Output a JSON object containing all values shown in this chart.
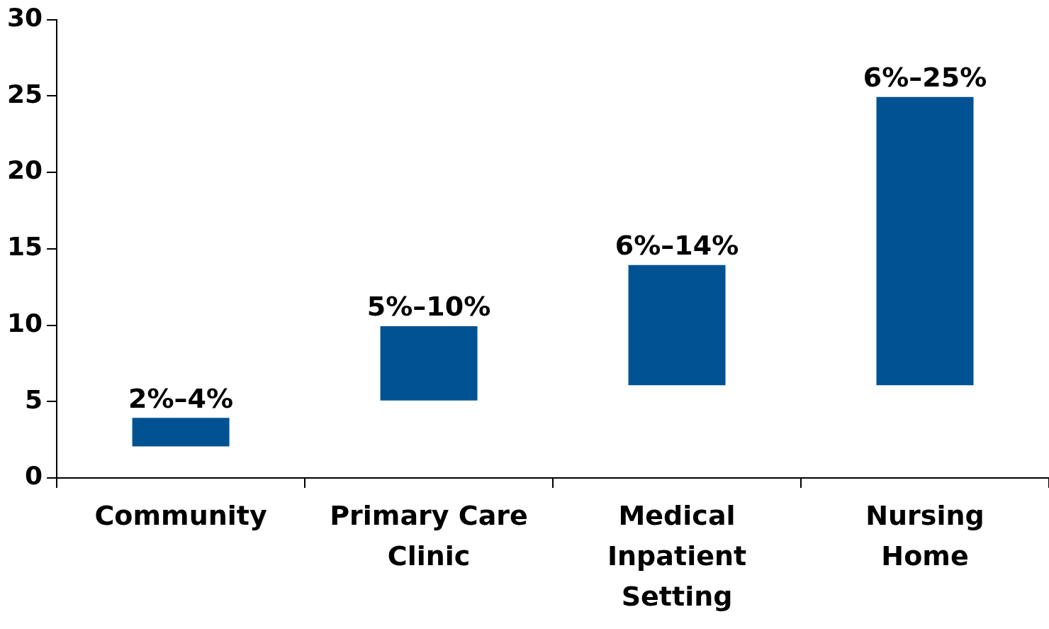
{
  "chart_data": {
    "type": "bar",
    "categories": [
      "Community",
      "Primary Care Clinic",
      "Medical Inpatient Setting",
      "Nursing Home"
    ],
    "base": [
      2,
      5,
      6,
      6
    ],
    "values": [
      2,
      5,
      8,
      19
    ],
    "annotations": [
      {
        "text": "2%–4%",
        "x": "Community",
        "y": 4
      },
      {
        "text": "5%–10%",
        "x": "Primary Care Clinic",
        "y": 10
      },
      {
        "text": "6%–14%",
        "x": "Medical Inpatient Setting",
        "y": 14
      },
      {
        "text": "6%–25%",
        "x": "Nursing Home",
        "y": 25
      }
    ],
    "color": "#005293",
    "ylim": [
      0,
      30
    ],
    "yticks": [
      0,
      5,
      10,
      15,
      20,
      25,
      30
    ],
    "grid": false,
    "legend": false
  }
}
